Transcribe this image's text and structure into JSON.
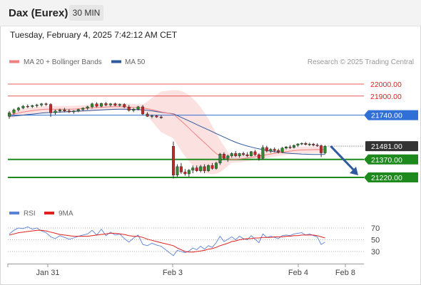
{
  "header": {
    "title": "Dax (Eurex)",
    "timeframe": "30 MIN",
    "datetime": "Tuesday, February 4, 2025 7:42:12 AM CET"
  },
  "legend": {
    "ma20_bb": {
      "label": "MA 20 + Bollinger Bands",
      "color": "#f08080"
    },
    "ma50": {
      "label": "MA 50",
      "color": "#2f5a9e"
    },
    "credit": "Research © 2025 Trading Central"
  },
  "rsi_legend": {
    "rsi": {
      "label": "RSI",
      "color": "#5b82d6"
    },
    "ma9": {
      "label": "9MA",
      "color": "#e02020"
    }
  },
  "chart_data": {
    "type": "candlestick",
    "instrument": "Dax (Eurex)",
    "timeframe": "30 MIN",
    "x_tick_labels": [
      "Jan 31",
      "Feb 3",
      "Feb 4",
      "Feb 8"
    ],
    "price_ylim": [
      21150,
      22080
    ],
    "levels": [
      {
        "value": 22000.0,
        "label": "22000.00",
        "type": "resistance",
        "color": "#e02020"
      },
      {
        "value": 21900.0,
        "label": "21900.00",
        "type": "resistance",
        "color": "#e02020"
      },
      {
        "value": 21740.0,
        "label": "21740.00",
        "type": "pivot",
        "color": "#2f6fd6"
      },
      {
        "value": 21481.0,
        "label": "21481.00",
        "type": "last_price",
        "color": "#333333"
      },
      {
        "value": 21370.0,
        "label": "21370.00",
        "type": "support",
        "color": "#1e8a1e"
      },
      {
        "value": 21220.0,
        "label": "21220.00",
        "type": "support",
        "color": "#1e8a1e"
      }
    ],
    "forecast_arrow": {
      "from": 21481,
      "to": 21220,
      "direction": "down"
    },
    "candles": [
      [
        21730,
        21775,
        21710,
        21760
      ],
      [
        21760,
        21795,
        21745,
        21785
      ],
      [
        21785,
        21810,
        21770,
        21800
      ],
      [
        21800,
        21825,
        21790,
        21815
      ],
      [
        21815,
        21830,
        21800,
        21812
      ],
      [
        21812,
        21828,
        21800,
        21820
      ],
      [
        21820,
        21835,
        21805,
        21825
      ],
      [
        21825,
        21842,
        21812,
        21835
      ],
      [
        21835,
        21845,
        21818,
        21830
      ],
      [
        21830,
        21840,
        21725,
        21760
      ],
      [
        21760,
        21785,
        21745,
        21775
      ],
      [
        21775,
        21795,
        21760,
        21785
      ],
      [
        21785,
        21800,
        21765,
        21775
      ],
      [
        21775,
        21790,
        21758,
        21768
      ],
      [
        21768,
        21782,
        21752,
        21775
      ],
      [
        21775,
        21795,
        21765,
        21788
      ],
      [
        21788,
        21806,
        21775,
        21798
      ],
      [
        21798,
        21818,
        21785,
        21810
      ],
      [
        21810,
        21845,
        21795,
        21835
      ],
      [
        21835,
        21848,
        21805,
        21815
      ],
      [
        21815,
        21845,
        21805,
        21838
      ],
      [
        21838,
        21850,
        21815,
        21825
      ],
      [
        21825,
        21842,
        21812,
        21835
      ],
      [
        21835,
        21845,
        21815,
        21822
      ],
      [
        21822,
        21838,
        21810,
        21830
      ],
      [
        21830,
        21840,
        21800,
        21808
      ],
      [
        21808,
        21825,
        21770,
        21780
      ],
      [
        21780,
        21800,
        21765,
        21790
      ],
      [
        21790,
        21818,
        21780,
        21810
      ],
      [
        21810,
        21825,
        21740,
        21750
      ],
      [
        21750,
        21765,
        21725,
        21730
      ],
      [
        21730,
        21745,
        21715,
        21735
      ],
      [
        21735,
        21742,
        21718,
        21725
      ],
      [
        21725,
        21738,
        21710,
        21720
      ],
      [
        21480,
        21520,
        21210,
        21240
      ],
      [
        21240,
        21330,
        21225,
        21310
      ],
      [
        21310,
        21340,
        21250,
        21265
      ],
      [
        21265,
        21290,
        21235,
        21250
      ],
      [
        21250,
        21290,
        21225,
        21280
      ],
      [
        21280,
        21320,
        21255,
        21300
      ],
      [
        21300,
        21320,
        21265,
        21275
      ],
      [
        21275,
        21325,
        21260,
        21310
      ],
      [
        21310,
        21330,
        21255,
        21275
      ],
      [
        21275,
        21330,
        21265,
        21320
      ],
      [
        21320,
        21340,
        21285,
        21295
      ],
      [
        21295,
        21350,
        21285,
        21340
      ],
      [
        21340,
        21425,
        21325,
        21415
      ],
      [
        21415,
        21430,
        21370,
        21380
      ],
      [
        21380,
        21410,
        21350,
        21400
      ],
      [
        21400,
        21430,
        21385,
        21420
      ],
      [
        21420,
        21440,
        21390,
        21400
      ],
      [
        21400,
        21425,
        21385,
        21420
      ],
      [
        21420,
        21435,
        21400,
        21410
      ],
      [
        21410,
        21430,
        21390,
        21400
      ],
      [
        21400,
        21440,
        21395,
        21435
      ],
      [
        21435,
        21450,
        21400,
        21410
      ],
      [
        21410,
        21420,
        21360,
        21380
      ],
      [
        21380,
        21490,
        21370,
        21470
      ],
      [
        21470,
        21485,
        21430,
        21440
      ],
      [
        21440,
        21465,
        21425,
        21455
      ],
      [
        21455,
        21470,
        21430,
        21445
      ],
      [
        21445,
        21460,
        21420,
        21432
      ],
      [
        21432,
        21475,
        21425,
        21465
      ],
      [
        21465,
        21482,
        21455,
        21475
      ],
      [
        21475,
        21490,
        21458,
        21470
      ],
      [
        21470,
        21495,
        21462,
        21488
      ],
      [
        21488,
        21505,
        21475,
        21500
      ],
      [
        21500,
        21512,
        21490,
        21505
      ],
      [
        21505,
        21515,
        21488,
        21495
      ],
      [
        21495,
        21510,
        21482,
        21498
      ],
      [
        21498,
        21508,
        21480,
        21490
      ],
      [
        21490,
        21505,
        21475,
        21485
      ],
      [
        21485,
        21495,
        21390,
        21425
      ],
      [
        21425,
        21490,
        21415,
        21481
      ]
    ],
    "ma20": [
      21745,
      21750,
      21758,
      21766,
      21772,
      21778,
      21783,
      21787,
      21790,
      21790,
      21789,
      21790,
      21790,
      21790,
      21791,
      21793,
      21796,
      21799,
      21802,
      21804,
      21806,
      21808,
      21810,
      21811,
      21811,
      21810,
      21807,
      21805,
      21804,
      21800,
      21794,
      21786,
      21777,
      21768,
      21748,
      21720,
      21692,
      21662,
      21632,
      21600,
      21570,
      21540,
      21510,
      21480,
      21448,
      21420,
      21400,
      21385,
      21375,
      21372,
      21372,
      21374,
      21378,
      21383,
      21388,
      21392,
      21398,
      21404,
      21410,
      21416,
      21421,
      21426,
      21431,
      21436,
      21440,
      21444,
      21447,
      21449,
      21450,
      21451,
      21452,
      21453,
      21452,
      21452
    ],
    "ma50": [
      21730,
      21733,
      21737,
      21741,
      21745,
      21749,
      21753,
      21757,
      21760,
      21762,
      21764,
      21766,
      21768,
      21770,
      21772,
      21774,
      21776,
      21778,
      21780,
      21782,
      21784,
      21786,
      21788,
      21789,
      21790,
      21790,
      21789,
      21788,
      21787,
      21785,
      21781,
      21776,
      21770,
      21764,
      21752,
      21737,
      21722,
      21707,
      21692,
      21677,
      21662,
      21647,
      21632,
      21617,
      21602,
      21587,
      21572,
      21557,
      21542,
      21527,
      21514,
      21502,
      21492,
      21482,
      21474,
      21466,
      21459,
      21452,
      21446,
      21440,
      21435,
      21431,
      21427,
      21424,
      21421,
      21419,
      21417,
      21415,
      21414,
      21413,
      21412,
      21412,
      21412,
      21413
    ],
    "rsi_panel": {
      "ylim": [
        20,
        80
      ],
      "ticks": [
        70,
        50,
        30
      ],
      "rsi": [
        60,
        66,
        70,
        69,
        72,
        68,
        70,
        65,
        62,
        55,
        52,
        57,
        54,
        51,
        53,
        56,
        58,
        60,
        66,
        58,
        68,
        57,
        63,
        58,
        60,
        52,
        46,
        53,
        58,
        42,
        40,
        44,
        41,
        39,
        23,
        32,
        30,
        28,
        31,
        36,
        33,
        39,
        34,
        40,
        37,
        45,
        56,
        47,
        51,
        55,
        50,
        56,
        52,
        50,
        57,
        51,
        45,
        60,
        54,
        56,
        54,
        52,
        57,
        58,
        57,
        60,
        61,
        62,
        58,
        60,
        57,
        55,
        42,
        46
      ],
      "ma9": [
        58,
        60,
        62,
        63,
        64,
        65,
        66,
        66,
        65,
        63,
        61,
        59,
        58,
        57,
        56,
        56,
        56,
        56,
        57,
        58,
        59,
        60,
        61,
        61,
        60,
        59,
        57,
        56,
        56,
        54,
        51,
        49,
        47,
        45,
        40,
        36,
        33,
        30,
        29,
        29,
        30,
        31,
        32,
        34,
        35,
        37,
        40,
        42,
        44,
        47,
        48,
        50,
        51,
        52,
        52,
        53,
        53,
        54,
        54,
        54,
        55,
        55,
        55,
        56,
        56,
        57,
        57,
        58,
        58,
        58,
        58,
        57,
        55,
        53
      ]
    }
  }
}
